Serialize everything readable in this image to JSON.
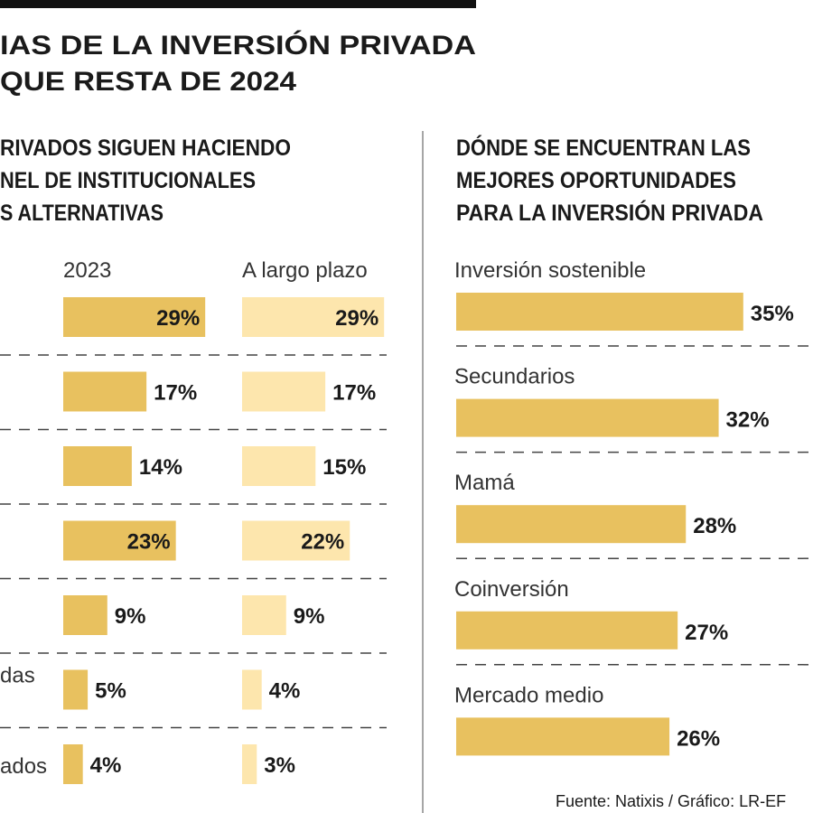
{
  "title": [
    "IAS DE LA INVERSIÓN PRIVADA",
    "QUE RESTA DE 2024"
  ],
  "source": "Fuente: Natixis / Gráfico: LR-EF",
  "chart_data": [
    {
      "type": "hbar",
      "title": [
        "RIVADOS SIGUEN HACIENDO",
        "NEL DE INSTITUCIONALES",
        "S ALTERNATIVAS"
      ],
      "categories": [
        null,
        null,
        null,
        null,
        null,
        "das",
        "ados"
      ],
      "series": [
        {
          "name": "2023",
          "color": "#e8c15f",
          "values": [
            29,
            17,
            14,
            23,
            9,
            5,
            4
          ],
          "value_labels": [
            "29%",
            "17%",
            "14%",
            "23%",
            "9%",
            "5%",
            "4%"
          ]
        },
        {
          "name": "A largo plazo",
          "color": "#fde6ad",
          "values": [
            29,
            17,
            15,
            22,
            9,
            4,
            3
          ],
          "value_labels": [
            "29%",
            "17%",
            "15%",
            "22%",
            "9%",
            "4%",
            "3%"
          ]
        }
      ]
    },
    {
      "type": "hbar",
      "title": [
        "DÓNDE SE ENCUENTRAN LAS",
        "MEJORES OPORTUNIDADES",
        "PARA LA INVERSIÓN PRIVADA"
      ],
      "categories": [
        "Inversión sostenible",
        "Secundarios",
        "Mamá",
        "Coinversión",
        "Mercado medio"
      ],
      "color": "#e8c15f",
      "values": [
        35,
        32,
        28,
        27,
        26
      ],
      "value_labels": [
        "35%",
        "32%",
        "28%",
        "27%",
        "26%"
      ]
    }
  ]
}
